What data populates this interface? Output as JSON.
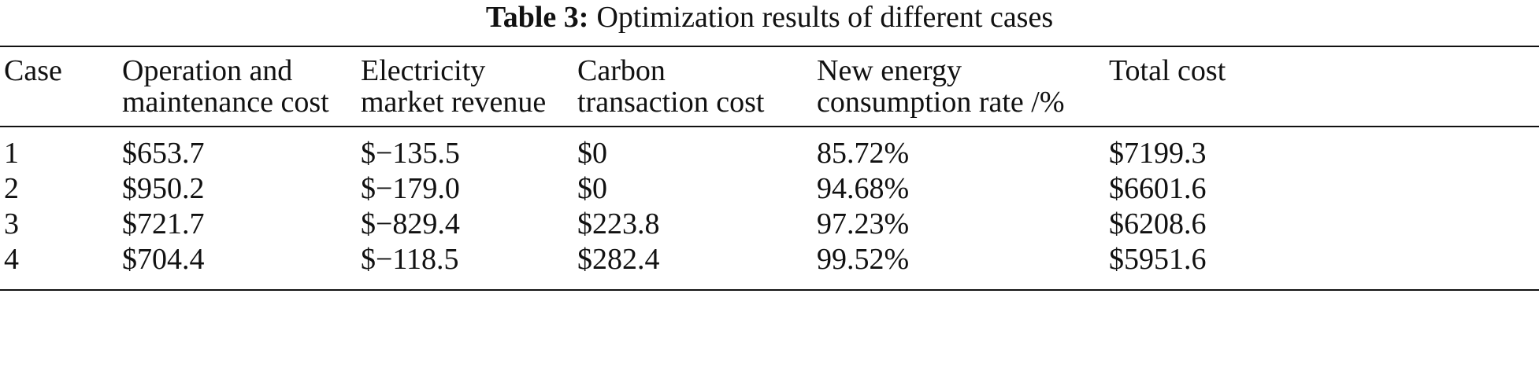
{
  "caption": {
    "label": "Table 3:",
    "text": "Optimization results of different cases"
  },
  "table": {
    "header": [
      [
        "Case"
      ],
      [
        "Operation and",
        "maintenance cost"
      ],
      [
        "Electricity",
        "market revenue"
      ],
      [
        "Carbon",
        "transaction cost"
      ],
      [
        "New energy",
        "consumption rate /%"
      ],
      [
        "Total cost"
      ]
    ],
    "rows": [
      [
        "1",
        "$653.7",
        "$−135.5",
        "$0",
        "85.72%",
        "$7199.3"
      ],
      [
        "2",
        "$950.2",
        "$−179.0",
        "$0",
        "94.68%",
        "$6601.6"
      ],
      [
        "3",
        "$721.7",
        "$−829.4",
        "$223.8",
        "97.23%",
        "$6208.6"
      ],
      [
        "4",
        "$704.4",
        "$−118.5",
        "$282.4",
        "99.52%",
        "$5951.6"
      ]
    ]
  }
}
